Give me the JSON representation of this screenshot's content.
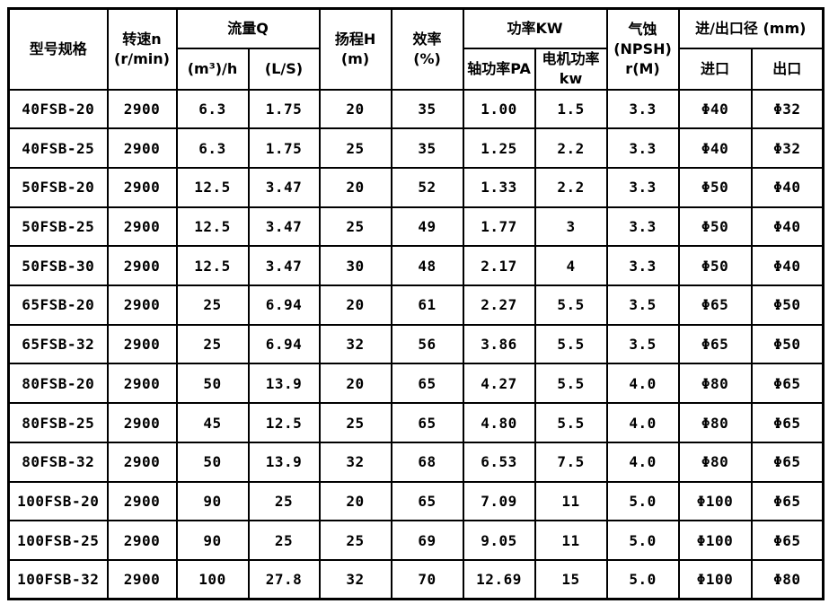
{
  "table": {
    "title_semantic": "FSB pump model specification table",
    "headers": {
      "model": "型号规格",
      "speed": "转速n\n(r/min)",
      "flow_group": "流量Q",
      "flow_m3h": "(m³)/h",
      "flow_ls": "(L/S)",
      "head": "扬程H\n(m)",
      "efficiency": "效率\n(%)",
      "power_group": "功率KW",
      "power_shaft": "轴功率PA",
      "power_motor": "电机功率\nkw",
      "npsh": "气蚀\n(NPSH)\nr(M)",
      "ports_group": "进/出口径 (mm)",
      "port_in": "进口",
      "port_out": "出口"
    },
    "column_keys": [
      "model",
      "speed-rpm",
      "flow-m3h",
      "flow-ls",
      "head-m",
      "efficiency-pct",
      "shaft-power-pa",
      "motor-power-kw",
      "npsh-m",
      "inlet-dia",
      "outlet-dia"
    ],
    "rows": [
      [
        "40FSB-20",
        "2900",
        "6.3",
        "1.75",
        "20",
        "35",
        "1.00",
        "1.5",
        "3.3",
        "Φ40",
        "Φ32"
      ],
      [
        "40FSB-25",
        "2900",
        "6.3",
        "1.75",
        "25",
        "35",
        "1.25",
        "2.2",
        "3.3",
        "Φ40",
        "Φ32"
      ],
      [
        "50FSB-20",
        "2900",
        "12.5",
        "3.47",
        "20",
        "52",
        "1.33",
        "2.2",
        "3.3",
        "Φ50",
        "Φ40"
      ],
      [
        "50FSB-25",
        "2900",
        "12.5",
        "3.47",
        "25",
        "49",
        "1.77",
        "3",
        "3.3",
        "Φ50",
        "Φ40"
      ],
      [
        "50FSB-30",
        "2900",
        "12.5",
        "3.47",
        "30",
        "48",
        "2.17",
        "4",
        "3.3",
        "Φ50",
        "Φ40"
      ],
      [
        "65FSB-20",
        "2900",
        "25",
        "6.94",
        "20",
        "61",
        "2.27",
        "5.5",
        "3.5",
        "Φ65",
        "Φ50"
      ],
      [
        "65FSB-32",
        "2900",
        "25",
        "6.94",
        "32",
        "56",
        "3.86",
        "5.5",
        "3.5",
        "Φ65",
        "Φ50"
      ],
      [
        "80FSB-20",
        "2900",
        "50",
        "13.9",
        "20",
        "65",
        "4.27",
        "5.5",
        "4.0",
        "Φ80",
        "Φ65"
      ],
      [
        "80FSB-25",
        "2900",
        "45",
        "12.5",
        "25",
        "65",
        "4.80",
        "5.5",
        "4.0",
        "Φ80",
        "Φ65"
      ],
      [
        "80FSB-32",
        "2900",
        "50",
        "13.9",
        "32",
        "68",
        "6.53",
        "7.5",
        "4.0",
        "Φ80",
        "Φ65"
      ],
      [
        "100FSB-20",
        "2900",
        "90",
        "25",
        "20",
        "65",
        "7.09",
        "11",
        "5.0",
        "Φ100",
        "Φ65"
      ],
      [
        "100FSB-25",
        "2900",
        "90",
        "25",
        "25",
        "69",
        "9.05",
        "11",
        "5.0",
        "Φ100",
        "Φ65"
      ],
      [
        "100FSB-32",
        "2900",
        "100",
        "27.8",
        "32",
        "70",
        "12.69",
        "15",
        "5.0",
        "Φ100",
        "Φ80"
      ]
    ]
  }
}
